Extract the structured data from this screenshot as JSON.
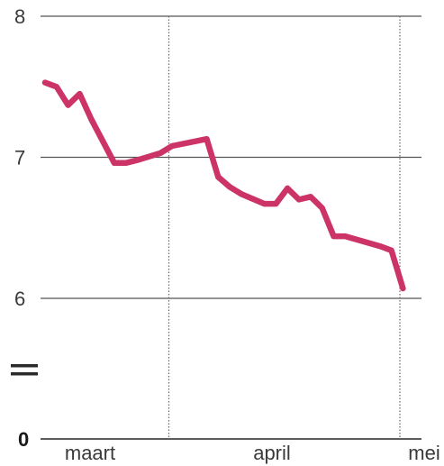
{
  "chart_data": {
    "type": "line",
    "title": "",
    "xlabel": "",
    "ylabel": "",
    "ylim": [
      6,
      8
    ],
    "y_ticks": [
      {
        "value": 8,
        "label": "8"
      },
      {
        "value": 7,
        "label": "7"
      },
      {
        "value": 6,
        "label": "6"
      }
    ],
    "y_zero_label": "0",
    "axis_break": true,
    "month_labels": [
      "maart",
      "april",
      "mei"
    ],
    "month_dividers": [
      "april",
      "mei"
    ],
    "grid": true,
    "line_color": "#cc3366",
    "grid_color": "#555555",
    "series": [
      {
        "values": [
          {
            "x": 1,
            "y": 7.53
          },
          {
            "x": 2,
            "y": 7.5
          },
          {
            "x": 3,
            "y": 7.37
          },
          {
            "x": 4,
            "y": 7.45
          },
          {
            "x": 5,
            "y": 7.27
          },
          {
            "x": 7,
            "y": 6.96
          },
          {
            "x": 8,
            "y": 6.96
          },
          {
            "x": 9,
            "y": 6.98
          },
          {
            "x": 11,
            "y": 7.03
          },
          {
            "x": 12,
            "y": 7.08
          },
          {
            "x": 15,
            "y": 7.13
          },
          {
            "x": 16,
            "y": 6.86
          },
          {
            "x": 17,
            "y": 6.79
          },
          {
            "x": 18,
            "y": 6.74
          },
          {
            "x": 20,
            "y": 6.67
          },
          {
            "x": 21,
            "y": 6.67
          },
          {
            "x": 22,
            "y": 6.78
          },
          {
            "x": 23,
            "y": 6.7
          },
          {
            "x": 24,
            "y": 6.72
          },
          {
            "x": 25,
            "y": 6.64
          },
          {
            "x": 26,
            "y": 6.44
          },
          {
            "x": 27,
            "y": 6.44
          },
          {
            "x": 30,
            "y": 6.37
          },
          {
            "x": 31,
            "y": 6.34
          },
          {
            "x": 32,
            "y": 6.07
          }
        ]
      }
    ]
  }
}
